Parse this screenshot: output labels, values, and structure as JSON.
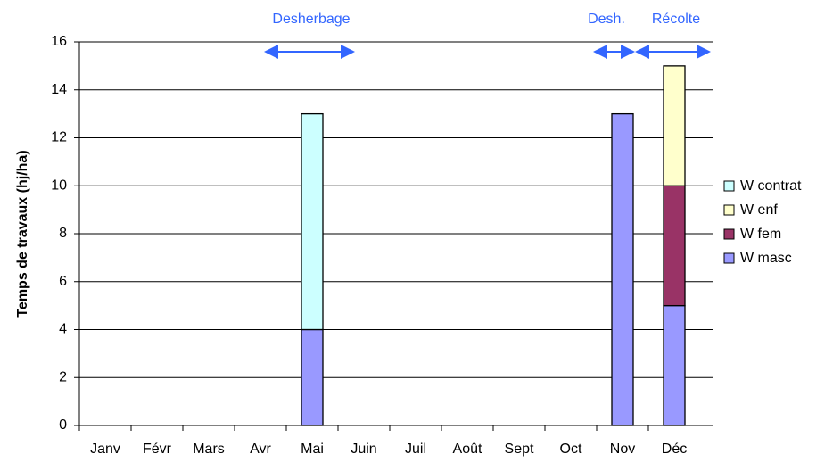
{
  "chart_data": {
    "type": "stacked_bar",
    "y_label": "Temps de travaux (hj/ha)",
    "annotations": [
      "Desherbage",
      "Desh.",
      "Récolte"
    ],
    "categories": [
      "Janv",
      "Févr",
      "Mars",
      "Avr",
      "Mai",
      "Juin",
      "Juil",
      "Août",
      "Sept",
      "Oct",
      "Nov",
      "Déc"
    ],
    "series": [
      {
        "name": "W masc",
        "color": "#9999ff",
        "values": [
          0,
          0,
          0,
          0,
          4,
          0,
          0,
          0,
          0,
          0,
          13,
          5
        ]
      },
      {
        "name": "W  fem",
        "color": "#993366",
        "values": [
          0,
          0,
          0,
          0,
          0,
          0,
          0,
          0,
          0,
          0,
          0,
          5
        ]
      },
      {
        "name": "W enf",
        "color": "#ffffcc",
        "values": [
          0,
          0,
          0,
          0,
          0,
          0,
          0,
          0,
          0,
          0,
          0,
          5
        ]
      },
      {
        "name": "W contrat",
        "color": "#ccffff",
        "values": [
          0,
          0,
          0,
          0,
          9,
          0,
          0,
          0,
          0,
          0,
          0,
          0
        ]
      }
    ],
    "ylim": [
      0,
      16
    ],
    "yticks": [
      0,
      2,
      4,
      6,
      8,
      10,
      12,
      14,
      16
    ],
    "grid": true,
    "legend": "right"
  }
}
